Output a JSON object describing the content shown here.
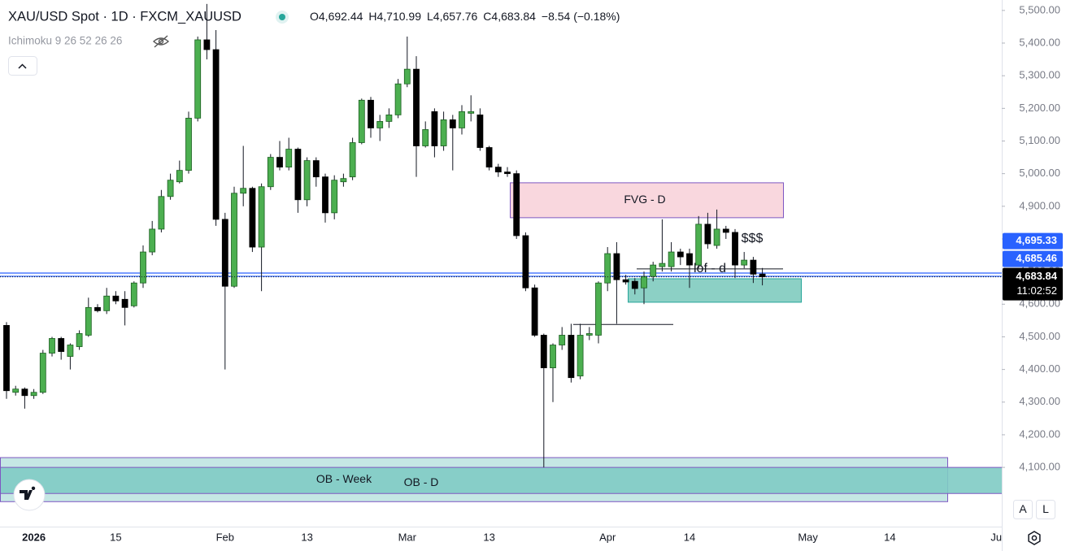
{
  "chart_data": {
    "type": "candlestick",
    "title": "XAU/USD Spot · 1D · FXCM_XAUUSD",
    "header_values": [
      "O4,692.44",
      "H4,710.99",
      "L4,657.76",
      "C4,683.84",
      "−8.54 (−0.18%)"
    ],
    "indicator": "Ichimoku 9 26 52 26 26",
    "categories": [
      null,
      null,
      null,
      "2026",
      null,
      null,
      null,
      null,
      null,
      null,
      null,
      null,
      "15",
      null,
      null,
      null,
      null,
      null,
      null,
      null,
      null,
      null,
      null,
      null,
      "Feb",
      null,
      null,
      null,
      null,
      null,
      null,
      null,
      null,
      "13",
      null,
      null,
      null,
      null,
      null,
      null,
      null,
      null,
      null,
      null,
      "Mar",
      null,
      null,
      null,
      null,
      null,
      null,
      null,
      null,
      "13",
      null,
      null,
      null,
      null,
      null,
      null,
      null,
      null,
      null,
      null,
      null,
      null,
      "Apr",
      null,
      null,
      null,
      null,
      null,
      null,
      null,
      null,
      "14",
      null,
      null,
      null,
      null,
      null,
      null,
      null,
      null,
      null,
      null,
      null,
      null,
      "May",
      null,
      null,
      null,
      null,
      null,
      null,
      null,
      null,
      "14",
      null,
      null,
      null,
      null,
      null,
      null,
      null,
      null,
      null,
      null,
      null,
      "Jun"
    ],
    "open": [
      4535,
      4330,
      4340,
      4320,
      4330,
      4450,
      4495,
      4440,
      4470,
      4505,
      4590,
      4580,
      4625,
      4615,
      4595,
      4665,
      4760,
      4830,
      4930,
      4975,
      5010,
      5170,
      5410,
      5380,
      4860,
      4655,
      4940,
      4955,
      4775,
      4960,
      5050,
      5020,
      5075,
      4920,
      5040,
      4990,
      4880,
      4975,
      4990,
      5095,
      5225,
      5140,
      5160,
      5180,
      5275,
      5320,
      5085,
      5190,
      5085,
      5165,
      5140,
      5185,
      5180,
      5080,
      5020,
      5005,
      5000,
      4810,
      4650,
      4505,
      4405,
      4475,
      4505,
      4380,
      4505,
      4505,
      4665,
      4755,
      4675,
      4670,
      4650,
      4685,
      4715,
      4715,
      4760,
      4755,
      4720,
      4845,
      4780,
      4830,
      4820,
      4720,
      4735,
      4692.44,
      null,
      null,
      null,
      null,
      null,
      null,
      null,
      null,
      null,
      null,
      null,
      null,
      null,
      null,
      null,
      null,
      null,
      null,
      null,
      null,
      null,
      null,
      null,
      null,
      null,
      null
    ],
    "high": [
      4545,
      4350,
      4345,
      4340,
      4460,
      4500,
      4500,
      4480,
      4520,
      4620,
      4600,
      4650,
      4640,
      4640,
      4670,
      4780,
      4855,
      4950,
      5000,
      5040,
      5190,
      5420,
      5520,
      5440,
      4880,
      4960,
      5085,
      4960,
      4970,
      5060,
      5100,
      5110,
      5080,
      5050,
      5050,
      5000,
      4995,
      5000,
      5110,
      5230,
      5235,
      5180,
      5200,
      5290,
      5420,
      5360,
      5160,
      5200,
      5190,
      5180,
      5210,
      5240,
      5200,
      5085,
      5030,
      5020,
      5010,
      4820,
      4660,
      4510,
      4480,
      4530,
      4540,
      4540,
      4530,
      4670,
      4775,
      4790,
      4690,
      4680,
      4700,
      4730,
      4860,
      4790,
      4770,
      4770,
      4870,
      4880,
      4890,
      4840,
      4830,
      4760,
      4745,
      4710.99,
      null,
      null,
      null,
      null,
      null,
      null,
      null,
      null,
      null,
      null,
      null,
      null,
      null,
      null,
      null,
      null,
      null,
      null,
      null,
      null,
      null,
      null,
      null,
      null,
      null,
      null
    ],
    "low": [
      4310,
      4320,
      4280,
      4310,
      4325,
      4440,
      4430,
      4400,
      4460,
      4500,
      4575,
      4570,
      4600,
      4535,
      4590,
      4650,
      4750,
      4820,
      4920,
      4970,
      5000,
      5160,
      5350,
      4840,
      4400,
      4650,
      4900,
      4760,
      4640,
      4950,
      5010,
      5010,
      4880,
      4900,
      4960,
      4850,
      4860,
      4960,
      4980,
      5090,
      5110,
      5100,
      5140,
      5170,
      5265,
      4990,
      5080,
      5050,
      5070,
      5010,
      5120,
      5160,
      5070,
      5010,
      4990,
      4990,
      4800,
      4640,
      4500,
      4100,
      4300,
      4460,
      4360,
      4370,
      4490,
      4480,
      4640,
      4540,
      4660,
      4630,
      4600,
      4670,
      4700,
      4700,
      4720,
      4650,
      4710,
      4770,
      4770,
      4800,
      4680,
      4710,
      4665,
      4657.76,
      null,
      null,
      null,
      null,
      null,
      null,
      null,
      null,
      null,
      null,
      null,
      null,
      null,
      null,
      null,
      null,
      null,
      null,
      null,
      null,
      null,
      null,
      null,
      null,
      null,
      null
    ],
    "close": [
      4335,
      4340,
      4320,
      4330,
      4450,
      4495,
      4455,
      4475,
      4510,
      4590,
      4580,
      4625,
      4610,
      4590,
      4665,
      4760,
      4830,
      4930,
      4980,
      5010,
      5170,
      5410,
      5380,
      4860,
      4655,
      4940,
      4955,
      4775,
      4960,
      5050,
      5020,
      5075,
      4920,
      5040,
      4990,
      4880,
      4980,
      4985,
      5095,
      5225,
      5140,
      5160,
      5180,
      5275,
      5320,
      5085,
      5135,
      5085,
      5165,
      5140,
      5190,
      5190,
      5080,
      5020,
      5005,
      5000,
      4810,
      4650,
      4505,
      4405,
      4475,
      4505,
      4375,
      4505,
      4510,
      4665,
      4755,
      4675,
      4668,
      4648,
      4685,
      4720,
      4725,
      4760,
      4745,
      4720,
      4845,
      4785,
      4830,
      4820,
      4720,
      4735,
      4692,
      4683.84,
      null,
      null,
      null,
      null,
      null,
      null,
      null,
      null,
      null,
      null,
      null,
      null,
      null,
      null,
      null,
      null,
      null,
      null,
      null,
      null,
      null,
      null,
      null,
      null,
      null,
      null
    ],
    "up_color": "#4caf50",
    "down_color": "#000000",
    "ylim": [
      3926,
      5532
    ],
    "yticks": [
      {
        "value": 4100,
        "label": "4,100.00"
      },
      {
        "value": 4200,
        "label": "4,200.00"
      },
      {
        "value": 4300,
        "label": "4,300.00"
      },
      {
        "value": 4400,
        "label": "4,400.00"
      },
      {
        "value": 4500,
        "label": "4,500.00"
      },
      {
        "value": 4600,
        "label": "4,600.00"
      },
      {
        "value": 4700,
        "label": "4,700.00"
      },
      {
        "value": 4800,
        "label": "4,800.00"
      },
      {
        "value": 4900,
        "label": "4,900.00"
      },
      {
        "value": 5000,
        "label": "5,000.00"
      },
      {
        "value": 5100,
        "label": "5,100.00"
      },
      {
        "value": 5200,
        "label": "5,200.00"
      },
      {
        "value": 5300,
        "label": "5,300.00"
      },
      {
        "value": 5400,
        "label": "5,400.00"
      },
      {
        "value": 5500,
        "label": "5,500.00"
      }
    ],
    "price_lines": [
      {
        "value": 4695.33,
        "label": "4,695.33",
        "color": "#2962ff"
      },
      {
        "value": 4685.46,
        "label": "4,685.46",
        "color": "#2962ff"
      }
    ],
    "last_price": {
      "value": 4683.84,
      "label": "4,683.84",
      "countdown": "11:02:52"
    },
    "zones": [
      {
        "text": "FVG - D",
        "high": 4972,
        "low": 4865,
        "color": "#f8d3da"
      },
      {
        "text": "OB - Week",
        "high": 4130,
        "low": 3995,
        "color": "#b2dfdb"
      },
      {
        "text": "OB - D",
        "high": 4100,
        "low": 4020,
        "color": "#80cbc4"
      },
      {
        "high": 4678,
        "low": 4606,
        "color": "#7fcbbf"
      }
    ],
    "levels": [
      {
        "text": "lof - d",
        "value": 4708
      },
      {
        "text": "$$$",
        "value": 4800
      },
      {
        "value": 4538
      }
    ]
  }
}
